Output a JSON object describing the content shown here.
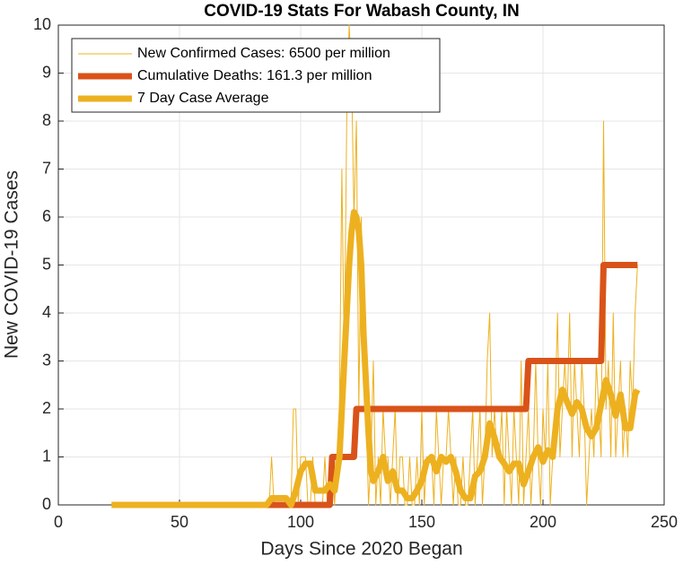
{
  "chart_data": {
    "type": "line",
    "title": "COVID-19 Stats For Wabash County, IN",
    "xlabel": "Days Since 2020 Began",
    "ylabel": "New COVID-19 Cases",
    "xlim": [
      0,
      250
    ],
    "xticks": [
      0,
      50,
      100,
      150,
      200,
      250
    ],
    "ylim": [
      0,
      10
    ],
    "yticks": [
      0,
      1,
      2,
      3,
      4,
      5,
      6,
      7,
      8,
      9,
      10
    ],
    "grid": true,
    "legend": "upper-left",
    "series": [
      {
        "name": "New Confirmed Cases: 6500 per million",
        "color": "#EDB120",
        "width": 1,
        "x": [
          22,
          87,
          88,
          89,
          90,
          91,
          92,
          93,
          94,
          95,
          96,
          97,
          98,
          99,
          100,
          101,
          102,
          103,
          104,
          105,
          106,
          107,
          108,
          109,
          110,
          111,
          112,
          113,
          114,
          115,
          116,
          117,
          118,
          119,
          120,
          121,
          122,
          123,
          124,
          125,
          126,
          127,
          128,
          129,
          130,
          131,
          132,
          133,
          134,
          135,
          136,
          137,
          138,
          139,
          140,
          141,
          142,
          143,
          144,
          145,
          146,
          147,
          148,
          149,
          150,
          151,
          152,
          153,
          154,
          155,
          156,
          157,
          158,
          159,
          160,
          161,
          162,
          163,
          164,
          165,
          166,
          167,
          168,
          169,
          170,
          171,
          172,
          173,
          174,
          175,
          176,
          177,
          178,
          179,
          180,
          181,
          182,
          183,
          184,
          185,
          186,
          187,
          188,
          189,
          190,
          191,
          192,
          193,
          194,
          195,
          196,
          197,
          198,
          199,
          200,
          201,
          202,
          203,
          204,
          205,
          206,
          207,
          208,
          209,
          210,
          211,
          212,
          213,
          214,
          215,
          216,
          217,
          218,
          219,
          220,
          221,
          222,
          223,
          224,
          225,
          226,
          227,
          228,
          229,
          230,
          231,
          232,
          233,
          234,
          235,
          236,
          237,
          238,
          239
        ],
        "values": [
          0,
          0,
          1,
          0,
          0,
          0,
          0,
          0,
          0,
          0,
          0,
          2,
          2,
          0,
          1,
          1,
          1,
          0,
          0,
          1,
          0,
          0,
          0,
          0,
          1,
          0,
          0,
          1,
          0,
          1,
          2,
          7,
          3,
          8,
          10,
          9,
          6,
          8,
          2,
          6,
          3,
          2,
          0,
          1,
          3,
          0,
          1,
          0,
          2,
          1,
          1,
          0,
          1,
          2,
          0,
          1,
          1,
          0,
          0,
          1,
          0,
          0,
          1,
          0,
          2,
          0,
          1,
          1,
          1,
          0,
          2,
          1,
          0,
          1,
          1,
          2,
          1,
          0,
          1,
          0,
          0,
          1,
          0,
          0,
          1,
          2,
          0,
          1,
          2,
          0,
          1,
          3,
          4,
          1,
          2,
          1,
          1,
          2,
          0,
          2,
          1,
          0,
          2,
          1,
          0,
          3,
          0,
          1,
          2,
          0,
          1,
          3,
          1,
          0,
          2,
          1,
          3,
          0,
          1,
          2,
          4,
          1,
          2,
          3,
          2,
          4,
          1,
          3,
          2,
          1,
          3,
          2,
          0,
          1,
          2,
          1,
          3,
          2,
          1,
          8,
          2,
          3,
          1,
          4,
          1,
          2,
          3,
          1,
          2,
          1,
          3,
          2,
          4,
          5
        ]
      },
      {
        "name": "Cumulative Deaths: 161.3 per million",
        "color": "#D95319",
        "width": 7,
        "x": [
          22,
          112,
          113,
          122,
          123,
          193,
          194,
          224,
          225,
          239
        ],
        "values": [
          0,
          0,
          1,
          1,
          2,
          2,
          3,
          3,
          5,
          5
        ]
      },
      {
        "name": "7 Day Case Average",
        "color": "#EDB120",
        "width": 7,
        "x": [
          22,
          86,
          88,
          94,
          96,
          98,
          100,
          102,
          104,
          106,
          110,
          112,
          114,
          116,
          118,
          119,
          120,
          121,
          122,
          123,
          124,
          125,
          126,
          127,
          128,
          129,
          130,
          132,
          134,
          136,
          138,
          140,
          142,
          144,
          146,
          148,
          150,
          152,
          154,
          156,
          158,
          160,
          162,
          164,
          166,
          168,
          170,
          172,
          174,
          176,
          178,
          180,
          182,
          184,
          186,
          188,
          190,
          192,
          194,
          196,
          198,
          200,
          202,
          204,
          206,
          208,
          210,
          212,
          214,
          216,
          218,
          220,
          222,
          224,
          226,
          228,
          230,
          232,
          234,
          236,
          238,
          239
        ],
        "values": [
          0,
          0,
          0.14,
          0.14,
          0,
          0.3,
          0.7,
          0.86,
          0.86,
          0.3,
          0.3,
          0.43,
          0.3,
          1.0,
          3.0,
          4.0,
          5.0,
          5.7,
          6.1,
          6.0,
          5.7,
          5.0,
          3.5,
          2.5,
          1.5,
          0.7,
          0.5,
          0.7,
          1.0,
          0.5,
          0.7,
          0.3,
          0.3,
          0.14,
          0.14,
          0.3,
          0.5,
          0.9,
          1.0,
          0.7,
          1.0,
          0.9,
          1.0,
          0.7,
          0.3,
          0.14,
          0.14,
          0.6,
          0.7,
          1.0,
          1.7,
          1.4,
          1.0,
          0.86,
          0.7,
          0.86,
          0.86,
          0.43,
          0.7,
          1.0,
          1.2,
          0.9,
          1.14,
          1.0,
          2.0,
          2.4,
          2.14,
          1.9,
          2.14,
          2.0,
          1.6,
          1.43,
          1.6,
          2.1,
          2.6,
          2.3,
          1.86,
          2.3,
          1.6,
          1.6,
          2.3,
          2.4
        ]
      }
    ]
  }
}
